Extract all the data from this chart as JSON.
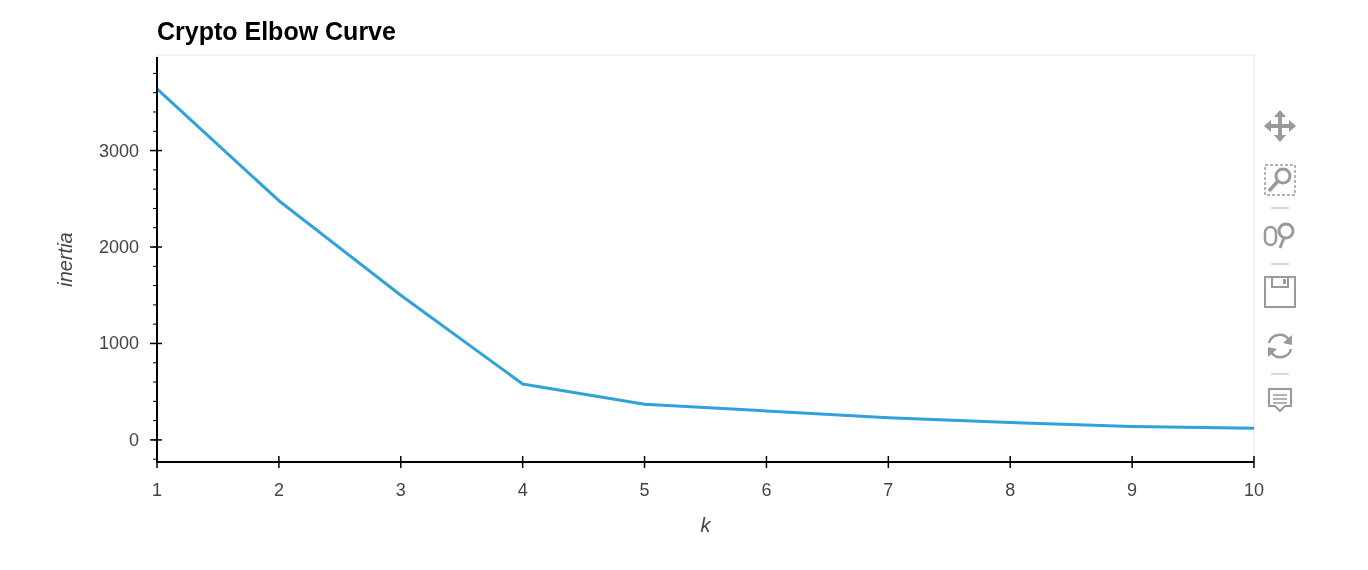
{
  "chart_data": {
    "type": "line",
    "title": "Crypto Elbow Curve",
    "xlabel": "k",
    "ylabel": "inertia",
    "x": [
      1,
      2,
      3,
      4,
      5,
      6,
      7,
      8,
      9,
      10
    ],
    "series": [
      {
        "color": "#30a2da",
        "values": [
          3640,
          2480,
          1500,
          580,
          370,
          300,
          230,
          180,
          140,
          120
        ]
      }
    ],
    "xlim": [
      1,
      10
    ],
    "xticks": [
      1,
      2,
      3,
      4,
      5,
      6,
      7,
      8,
      9,
      10
    ],
    "ylim": [
      -229,
      3970
    ],
    "yticks": [
      0,
      1000,
      2000,
      3000
    ],
    "grid": false
  }
}
